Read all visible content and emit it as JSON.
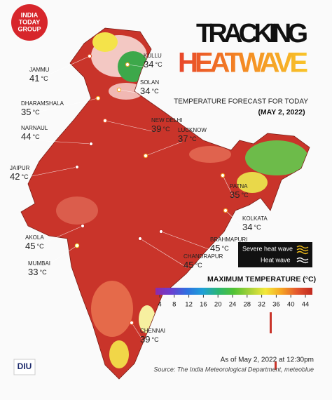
{
  "brand": {
    "logo_lines": [
      "INDIA",
      "TODAY",
      "GROUP"
    ],
    "footer_logo": "DIU"
  },
  "header": {
    "title_line1": "TRACKING",
    "title_line2": "HEATWAVE",
    "subtitle": "TEMPERATURE FORECAST FOR TODAY",
    "date": "(MAY 2, 2022)"
  },
  "unit": "°C",
  "cities": [
    {
      "name": "Kullu",
      "temp": 34
    },
    {
      "name": "Jammu",
      "temp": 41
    },
    {
      "name": "Solan",
      "temp": 34
    },
    {
      "name": "Dharamshala",
      "temp": 35
    },
    {
      "name": "New Delhi",
      "temp": 39
    },
    {
      "name": "Narnaul",
      "temp": 44
    },
    {
      "name": "Lucknow",
      "temp": 37
    },
    {
      "name": "Jaipur",
      "temp": 42
    },
    {
      "name": "Patna",
      "temp": 35
    },
    {
      "name": "Kolkata",
      "temp": 34
    },
    {
      "name": "Akola",
      "temp": 45
    },
    {
      "name": "Brahmapuri",
      "temp": 45
    },
    {
      "name": "Mumbai",
      "temp": 33
    },
    {
      "name": "Chandrapur",
      "temp": 45
    },
    {
      "name": "Chennai",
      "temp": 39
    }
  ],
  "legend": {
    "severe": "Severe heat wave",
    "heat": "Heat wave"
  },
  "scale": {
    "title": "MAXIMUM TEMPERATURE (°C)",
    "ticks": [
      4,
      8,
      12,
      16,
      20,
      24,
      28,
      32,
      36,
      40,
      44
    ],
    "colors": [
      "#8e2aa8",
      "#6a3fd0",
      "#2f6fe0",
      "#1fa0d8",
      "#2bb673",
      "#52c234",
      "#a6d13a",
      "#f3e83a",
      "#f6a623",
      "#e4572e",
      "#c0281f"
    ]
  },
  "footer": {
    "asof": "As of May 2, 2022 at 12:30pm",
    "source": "Source: The India Meteorological Department, meteoblue"
  }
}
